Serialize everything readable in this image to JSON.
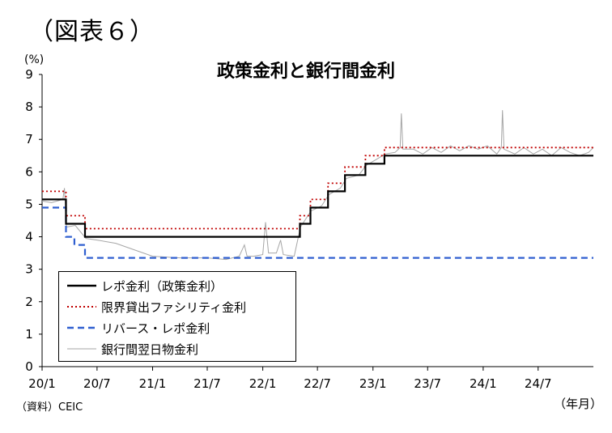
{
  "figure_label": "（図表６）",
  "source_note": "（資料）CEIC",
  "colors": {
    "policy_rate": "#000000",
    "lending_facility": "#c00000",
    "reverse_repo": "#2f5fd0",
    "interbank": "#a6a6a6"
  },
  "chart_data": {
    "type": "line",
    "title": "政策金利と銀行間金利",
    "yunit": "(%)",
    "xunit": "（年月）",
    "ylim": [
      0,
      9
    ],
    "yticks": [
      "0",
      "1",
      "2",
      "3",
      "4",
      "5",
      "6",
      "7",
      "8",
      "9"
    ],
    "xlim": [
      "2020-01-01",
      "2024-12-31"
    ],
    "xticks": [
      {
        "date": "2020-01-01",
        "label": "20/1"
      },
      {
        "date": "2020-07-01",
        "label": "20/7"
      },
      {
        "date": "2021-01-01",
        "label": "21/1"
      },
      {
        "date": "2021-07-01",
        "label": "21/7"
      },
      {
        "date": "2022-01-01",
        "label": "22/1"
      },
      {
        "date": "2022-07-01",
        "label": "22/7"
      },
      {
        "date": "2023-01-01",
        "label": "23/1"
      },
      {
        "date": "2023-07-01",
        "label": "23/7"
      },
      {
        "date": "2024-01-01",
        "label": "24/1"
      },
      {
        "date": "2024-07-01",
        "label": "24/7"
      }
    ],
    "grid": false,
    "legend_position": "bottom-left",
    "series": [
      {
        "name": "レポ金利（政策金利）",
        "style": "solid",
        "points": [
          [
            "2020-01-01",
            5.15
          ],
          [
            "2020-03-20",
            5.15
          ],
          [
            "2020-03-20",
            4.4
          ],
          [
            "2020-05-22",
            4.4
          ],
          [
            "2020-05-22",
            4.0
          ],
          [
            "2022-05-04",
            4.0
          ],
          [
            "2022-05-04",
            4.4
          ],
          [
            "2022-06-08",
            4.4
          ],
          [
            "2022-06-08",
            4.9
          ],
          [
            "2022-08-05",
            4.9
          ],
          [
            "2022-08-05",
            5.4
          ],
          [
            "2022-09-30",
            5.4
          ],
          [
            "2022-09-30",
            5.9
          ],
          [
            "2022-12-07",
            5.9
          ],
          [
            "2022-12-07",
            6.25
          ],
          [
            "2023-02-08",
            6.25
          ],
          [
            "2023-02-08",
            6.5
          ],
          [
            "2024-12-31",
            6.5
          ]
        ]
      },
      {
        "name": "限界貸出ファシリティ金利",
        "style": "dotted",
        "points": [
          [
            "2020-01-01",
            5.4
          ],
          [
            "2020-03-20",
            5.4
          ],
          [
            "2020-03-20",
            4.65
          ],
          [
            "2020-05-22",
            4.65
          ],
          [
            "2020-05-22",
            4.25
          ],
          [
            "2022-05-04",
            4.25
          ],
          [
            "2022-05-04",
            4.65
          ],
          [
            "2022-06-08",
            4.65
          ],
          [
            "2022-06-08",
            5.15
          ],
          [
            "2022-08-05",
            5.15
          ],
          [
            "2022-08-05",
            5.65
          ],
          [
            "2022-09-30",
            5.65
          ],
          [
            "2022-09-30",
            6.15
          ],
          [
            "2022-12-07",
            6.15
          ],
          [
            "2022-12-07",
            6.5
          ],
          [
            "2023-02-08",
            6.5
          ],
          [
            "2023-02-08",
            6.75
          ],
          [
            "2024-12-31",
            6.75
          ]
        ]
      },
      {
        "name": "リバース・レポ金利",
        "style": "dashed",
        "points": [
          [
            "2020-01-01",
            4.9
          ],
          [
            "2020-03-20",
            4.9
          ],
          [
            "2020-03-20",
            4.0
          ],
          [
            "2020-04-17",
            4.0
          ],
          [
            "2020-04-17",
            3.75
          ],
          [
            "2020-05-22",
            3.75
          ],
          [
            "2020-05-22",
            3.35
          ],
          [
            "2024-12-31",
            3.35
          ]
        ]
      },
      {
        "name": "銀行間翌日物金利",
        "style": "thin",
        "points": [
          [
            "2020-01-01",
            5.1
          ],
          [
            "2020-02-01",
            5.05
          ],
          [
            "2020-03-10",
            5.15
          ],
          [
            "2020-03-15",
            5.5
          ],
          [
            "2020-03-22",
            4.3
          ],
          [
            "2020-04-20",
            4.35
          ],
          [
            "2020-05-25",
            3.95
          ],
          [
            "2020-07-01",
            3.9
          ],
          [
            "2020-09-01",
            3.8
          ],
          [
            "2020-11-01",
            3.6
          ],
          [
            "2021-01-01",
            3.4
          ],
          [
            "2021-04-01",
            3.35
          ],
          [
            "2021-07-01",
            3.35
          ],
          [
            "2021-09-01",
            3.3
          ],
          [
            "2021-10-15",
            3.4
          ],
          [
            "2021-11-01",
            3.75
          ],
          [
            "2021-11-10",
            3.4
          ],
          [
            "2021-12-01",
            3.4
          ],
          [
            "2022-01-01",
            3.45
          ],
          [
            "2022-01-10",
            4.45
          ],
          [
            "2022-01-20",
            3.5
          ],
          [
            "2022-02-15",
            3.5
          ],
          [
            "2022-03-01",
            3.9
          ],
          [
            "2022-03-10",
            3.45
          ],
          [
            "2022-04-15",
            3.4
          ],
          [
            "2022-05-06",
            4.3
          ],
          [
            "2022-06-10",
            4.8
          ],
          [
            "2022-07-15",
            4.95
          ],
          [
            "2022-08-08",
            5.3
          ],
          [
            "2022-09-15",
            5.5
          ],
          [
            "2022-10-05",
            5.8
          ],
          [
            "2022-11-15",
            5.9
          ],
          [
            "2022-12-10",
            6.2
          ],
          [
            "2023-01-15",
            6.4
          ],
          [
            "2023-02-10",
            6.55
          ],
          [
            "2023-03-15",
            6.6
          ],
          [
            "2023-04-01",
            6.75
          ],
          [
            "2023-04-05",
            7.8
          ],
          [
            "2023-04-10",
            6.7
          ],
          [
            "2023-05-15",
            6.7
          ],
          [
            "2023-06-15",
            6.55
          ],
          [
            "2023-07-15",
            6.75
          ],
          [
            "2023-08-15",
            6.6
          ],
          [
            "2023-09-15",
            6.8
          ],
          [
            "2023-10-15",
            6.65
          ],
          [
            "2023-11-15",
            6.8
          ],
          [
            "2023-12-15",
            6.7
          ],
          [
            "2024-01-15",
            6.8
          ],
          [
            "2024-02-15",
            6.55
          ],
          [
            "2024-03-01",
            6.75
          ],
          [
            "2024-03-05",
            7.9
          ],
          [
            "2024-03-10",
            6.7
          ],
          [
            "2024-04-15",
            6.55
          ],
          [
            "2024-05-15",
            6.75
          ],
          [
            "2024-06-15",
            6.55
          ],
          [
            "2024-07-15",
            6.7
          ],
          [
            "2024-08-15",
            6.5
          ],
          [
            "2024-09-15",
            6.75
          ],
          [
            "2024-10-15",
            6.6
          ],
          [
            "2024-11-15",
            6.5
          ],
          [
            "2024-12-15",
            6.6
          ],
          [
            "2024-12-31",
            6.75
          ]
        ]
      }
    ]
  }
}
